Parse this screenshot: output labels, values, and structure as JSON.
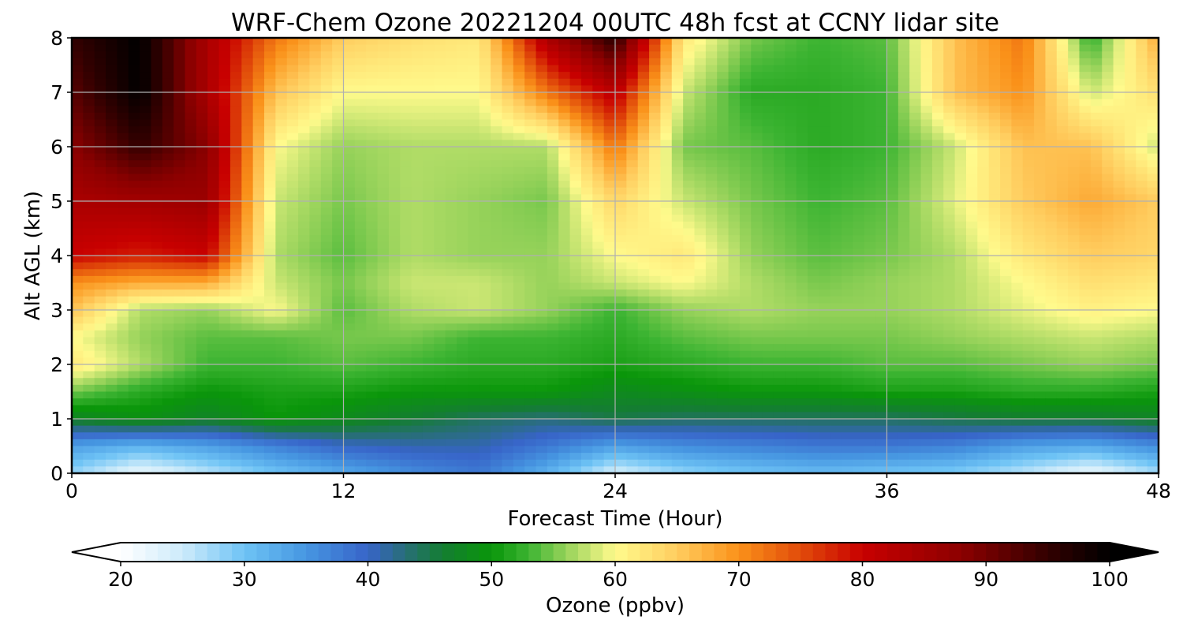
{
  "chart_data": {
    "type": "heatmap",
    "title": "WRF-Chem Ozone  20221204 00UTC 48h fcst at CCNY lidar site",
    "xlabel": "Forecast Time (Hour)",
    "ylabel": "Alt AGL (km)",
    "xlim": [
      0,
      48
    ],
    "ylim": [
      0,
      8
    ],
    "xticks": [
      "0",
      "12",
      "24",
      "36",
      "48"
    ],
    "yticks": [
      "0",
      "1",
      "2",
      "3",
      "4",
      "5",
      "6",
      "7",
      "8"
    ],
    "grid": true,
    "x": [
      0,
      3,
      6,
      9,
      12,
      15,
      18,
      21,
      24,
      27,
      30,
      33,
      36,
      39,
      42,
      45,
      48
    ],
    "y": [
      0,
      0.5,
      1,
      1.5,
      2,
      2.5,
      3,
      3.5,
      4,
      5,
      6,
      7,
      8
    ],
    "z": [
      [
        28,
        22,
        26,
        30,
        33,
        36,
        38,
        32,
        24,
        28,
        30,
        31,
        30,
        29,
        26,
        22,
        27
      ],
      [
        34,
        32,
        34,
        37,
        40,
        41,
        41,
        38,
        34,
        36,
        37,
        38,
        38,
        37,
        34,
        33,
        36
      ],
      [
        47,
        49,
        47,
        50,
        48,
        46,
        44,
        43,
        45,
        44,
        44,
        44,
        44,
        45,
        46,
        46,
        47
      ],
      [
        55,
        52,
        50,
        51,
        51,
        50,
        50,
        50,
        48,
        49,
        50,
        50,
        51,
        51,
        52,
        52,
        51
      ],
      [
        62,
        57,
        53,
        53,
        54,
        53,
        52,
        52,
        51,
        52,
        53,
        53,
        54,
        54,
        55,
        56,
        55
      ],
      [
        60,
        56,
        54,
        54,
        55,
        55,
        53,
        53,
        52,
        54,
        55,
        55,
        55,
        56,
        57,
        58,
        57
      ],
      [
        66,
        57,
        56,
        60,
        54,
        57,
        58,
        56,
        53,
        56,
        57,
        56,
        56,
        57,
        59,
        61,
        60
      ],
      [
        70,
        68,
        68,
        58,
        55,
        58,
        58,
        56,
        58,
        60,
        57,
        55,
        56,
        57,
        60,
        63,
        62
      ],
      [
        80,
        78,
        80,
        57,
        54,
        57,
        56,
        56,
        60,
        62,
        56,
        54,
        55,
        57,
        62,
        65,
        64
      ],
      [
        84,
        85,
        86,
        58,
        55,
        57,
        56,
        55,
        64,
        58,
        55,
        53,
        54,
        59,
        65,
        68,
        65
      ],
      [
        88,
        95,
        88,
        60,
        56,
        57,
        57,
        57,
        72,
        55,
        54,
        52,
        53,
        58,
        66,
        66,
        58
      ],
      [
        92,
        100,
        84,
        66,
        60,
        60,
        60,
        72,
        82,
        58,
        52,
        52,
        53,
        66,
        70,
        58,
        63
      ],
      [
        95,
        100,
        84,
        72,
        65,
        63,
        62,
        84,
        96,
        62,
        55,
        53,
        54,
        66,
        72,
        52,
        68
      ]
    ],
    "colorbar": {
      "label": "Ozone  (ppbv)",
      "min": 20,
      "max": 100,
      "ticks": [
        "20",
        "30",
        "40",
        "50",
        "60",
        "70",
        "80",
        "90",
        "100"
      ],
      "extend": "both",
      "placement": "bottom"
    }
  }
}
